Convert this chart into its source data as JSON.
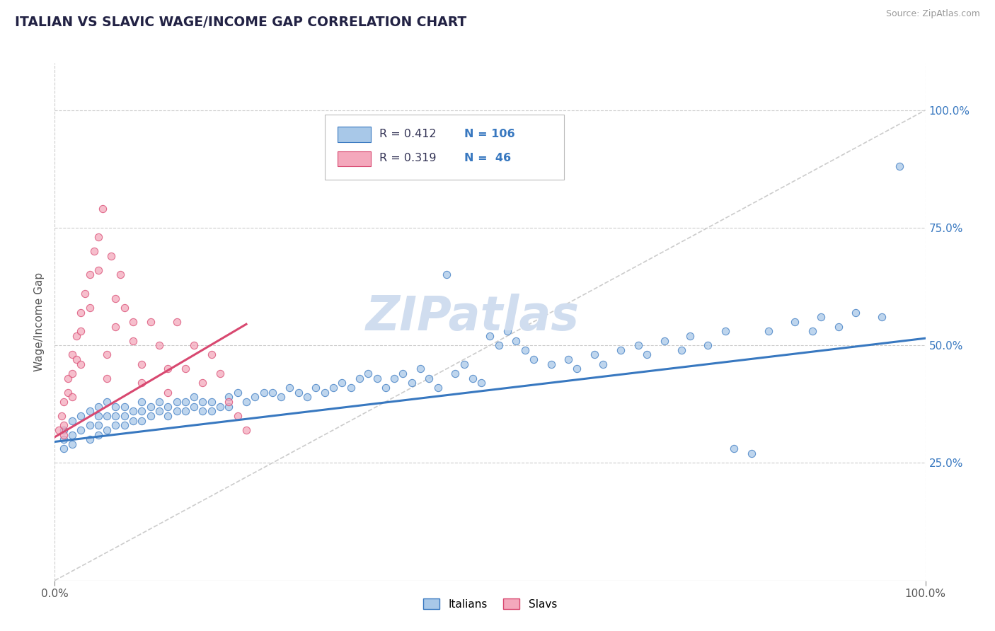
{
  "title": "ITALIAN VS SLAVIC WAGE/INCOME GAP CORRELATION CHART",
  "source": "Source: ZipAtlas.com",
  "ylabel": "Wage/Income Gap",
  "r_italian": 0.412,
  "n_italian": 106,
  "r_slavic": 0.319,
  "n_slavic": 46,
  "color_italian": "#a8c8e8",
  "color_slavic": "#f4a8bc",
  "color_italian_line": "#3878c0",
  "color_slavic_line": "#d84870",
  "color_diag": "#cccccc",
  "watermark": "ZIPatlas",
  "watermark_color": "#d0ddef",
  "xlim": [
    0.0,
    1.0
  ],
  "ylim": [
    0.0,
    1.1
  ],
  "right_yticks": [
    0.25,
    0.5,
    0.75,
    1.0
  ],
  "right_yticklabels": [
    "25.0%",
    "50.0%",
    "75.0%",
    "100.0%"
  ],
  "it_trend_x0": 0.0,
  "it_trend_y0": 0.295,
  "it_trend_x1": 1.0,
  "it_trend_y1": 0.515,
  "sl_trend_x0": 0.0,
  "sl_trend_y0": 0.305,
  "sl_trend_x1": 0.22,
  "sl_trend_y1": 0.545,
  "italian_scatter_x": [
    0.01,
    0.01,
    0.01,
    0.02,
    0.02,
    0.02,
    0.03,
    0.03,
    0.04,
    0.04,
    0.04,
    0.05,
    0.05,
    0.05,
    0.05,
    0.06,
    0.06,
    0.06,
    0.07,
    0.07,
    0.07,
    0.08,
    0.08,
    0.08,
    0.09,
    0.09,
    0.1,
    0.1,
    0.1,
    0.11,
    0.11,
    0.12,
    0.12,
    0.13,
    0.13,
    0.14,
    0.14,
    0.15,
    0.15,
    0.16,
    0.16,
    0.17,
    0.17,
    0.18,
    0.18,
    0.19,
    0.2,
    0.2,
    0.21,
    0.22,
    0.23,
    0.24,
    0.25,
    0.26,
    0.27,
    0.28,
    0.29,
    0.3,
    0.31,
    0.32,
    0.33,
    0.34,
    0.35,
    0.36,
    0.37,
    0.38,
    0.39,
    0.4,
    0.41,
    0.42,
    0.43,
    0.44,
    0.45,
    0.46,
    0.47,
    0.48,
    0.49,
    0.5,
    0.51,
    0.52,
    0.53,
    0.54,
    0.55,
    0.57,
    0.59,
    0.6,
    0.62,
    0.63,
    0.65,
    0.67,
    0.68,
    0.7,
    0.72,
    0.73,
    0.75,
    0.77,
    0.78,
    0.8,
    0.82,
    0.85,
    0.87,
    0.88,
    0.9,
    0.92,
    0.95,
    0.97
  ],
  "italian_scatter_y": [
    0.32,
    0.3,
    0.28,
    0.34,
    0.31,
    0.29,
    0.35,
    0.32,
    0.36,
    0.33,
    0.3,
    0.37,
    0.35,
    0.33,
    0.31,
    0.38,
    0.35,
    0.32,
    0.37,
    0.35,
    0.33,
    0.37,
    0.35,
    0.33,
    0.36,
    0.34,
    0.38,
    0.36,
    0.34,
    0.37,
    0.35,
    0.38,
    0.36,
    0.37,
    0.35,
    0.38,
    0.36,
    0.38,
    0.36,
    0.39,
    0.37,
    0.38,
    0.36,
    0.38,
    0.36,
    0.37,
    0.39,
    0.37,
    0.4,
    0.38,
    0.39,
    0.4,
    0.4,
    0.39,
    0.41,
    0.4,
    0.39,
    0.41,
    0.4,
    0.41,
    0.42,
    0.41,
    0.43,
    0.44,
    0.43,
    0.41,
    0.43,
    0.44,
    0.42,
    0.45,
    0.43,
    0.41,
    0.65,
    0.44,
    0.46,
    0.43,
    0.42,
    0.52,
    0.5,
    0.53,
    0.51,
    0.49,
    0.47,
    0.46,
    0.47,
    0.45,
    0.48,
    0.46,
    0.49,
    0.5,
    0.48,
    0.51,
    0.49,
    0.52,
    0.5,
    0.53,
    0.28,
    0.27,
    0.53,
    0.55,
    0.53,
    0.56,
    0.54,
    0.57,
    0.56,
    0.88
  ],
  "slavic_scatter_x": [
    0.005,
    0.008,
    0.01,
    0.01,
    0.01,
    0.015,
    0.015,
    0.02,
    0.02,
    0.02,
    0.025,
    0.025,
    0.03,
    0.03,
    0.03,
    0.035,
    0.04,
    0.04,
    0.045,
    0.05,
    0.05,
    0.055,
    0.06,
    0.06,
    0.065,
    0.07,
    0.07,
    0.075,
    0.08,
    0.09,
    0.09,
    0.1,
    0.1,
    0.11,
    0.12,
    0.13,
    0.13,
    0.14,
    0.15,
    0.16,
    0.17,
    0.18,
    0.19,
    0.2,
    0.21,
    0.22
  ],
  "slavic_scatter_y": [
    0.32,
    0.35,
    0.38,
    0.33,
    0.31,
    0.43,
    0.4,
    0.48,
    0.44,
    0.39,
    0.52,
    0.47,
    0.57,
    0.53,
    0.46,
    0.61,
    0.65,
    0.58,
    0.7,
    0.73,
    0.66,
    0.79,
    0.48,
    0.43,
    0.69,
    0.6,
    0.54,
    0.65,
    0.58,
    0.55,
    0.51,
    0.46,
    0.42,
    0.55,
    0.5,
    0.45,
    0.4,
    0.55,
    0.45,
    0.5,
    0.42,
    0.48,
    0.44,
    0.38,
    0.35,
    0.32
  ]
}
